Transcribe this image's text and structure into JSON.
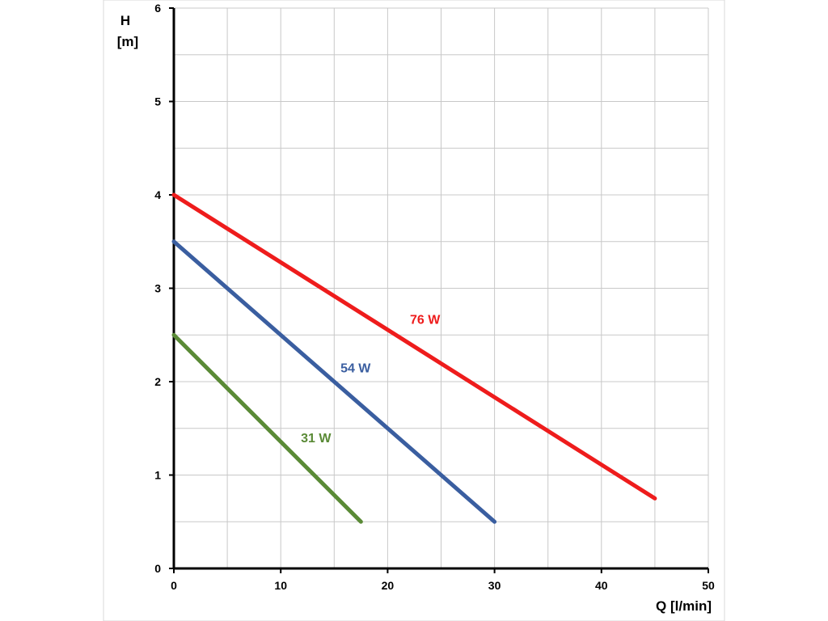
{
  "chart_data": {
    "type": "line",
    "title": "",
    "xlabel": "Q [l/min]",
    "ylabel_line1": "H",
    "ylabel_line2": "[m]",
    "xlim": [
      0,
      50
    ],
    "ylim": [
      0,
      6
    ],
    "x_major_ticks": [
      0,
      10,
      20,
      30,
      40,
      50
    ],
    "x_minor_step": 5,
    "y_major_ticks": [
      0,
      1,
      2,
      3,
      4,
      5,
      6
    ],
    "y_minor_step": 0.5,
    "grid": true,
    "legend": "none (inline labels)",
    "series": [
      {
        "name": "76 W",
        "color": "#ee1c1c",
        "points": [
          [
            0,
            4.0
          ],
          [
            45,
            0.75
          ]
        ],
        "label_at": [
          23.5,
          2.62
        ]
      },
      {
        "name": "54 W",
        "color": "#3a5ea0",
        "points": [
          [
            0,
            3.5
          ],
          [
            30,
            0.5
          ]
        ],
        "label_at": [
          17,
          2.1
        ]
      },
      {
        "name": "31 W",
        "color": "#5a8a36",
        "points": [
          [
            0,
            2.5
          ],
          [
            17.5,
            0.5
          ]
        ],
        "label_at": [
          13.3,
          1.35
        ]
      }
    ]
  }
}
